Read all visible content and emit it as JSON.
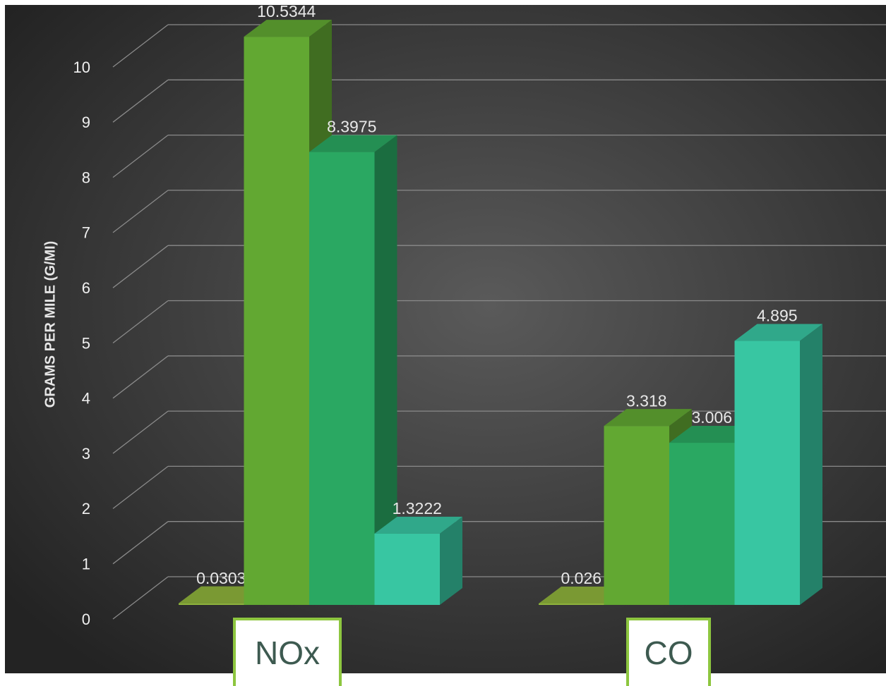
{
  "chart_data": {
    "type": "bar3d",
    "y_label": "GRAMS PER MILE (G/MI)",
    "categories": [
      "NOx",
      "CO"
    ],
    "series": [
      {
        "color": "#8fb43c",
        "values": [
          0.0303,
          0.026
        ]
      },
      {
        "color": "#62a832",
        "values": [
          10.5344,
          3.318
        ]
      },
      {
        "color": "#2aa862",
        "values": [
          8.3975,
          3.006
        ]
      },
      {
        "color": "#38c6a2",
        "values": [
          1.3222,
          4.895
        ]
      }
    ],
    "ylim": [
      0,
      10
    ],
    "yticks": [
      0,
      1,
      2,
      3,
      4,
      5,
      6,
      7,
      8,
      9,
      10
    ],
    "grid": true
  }
}
